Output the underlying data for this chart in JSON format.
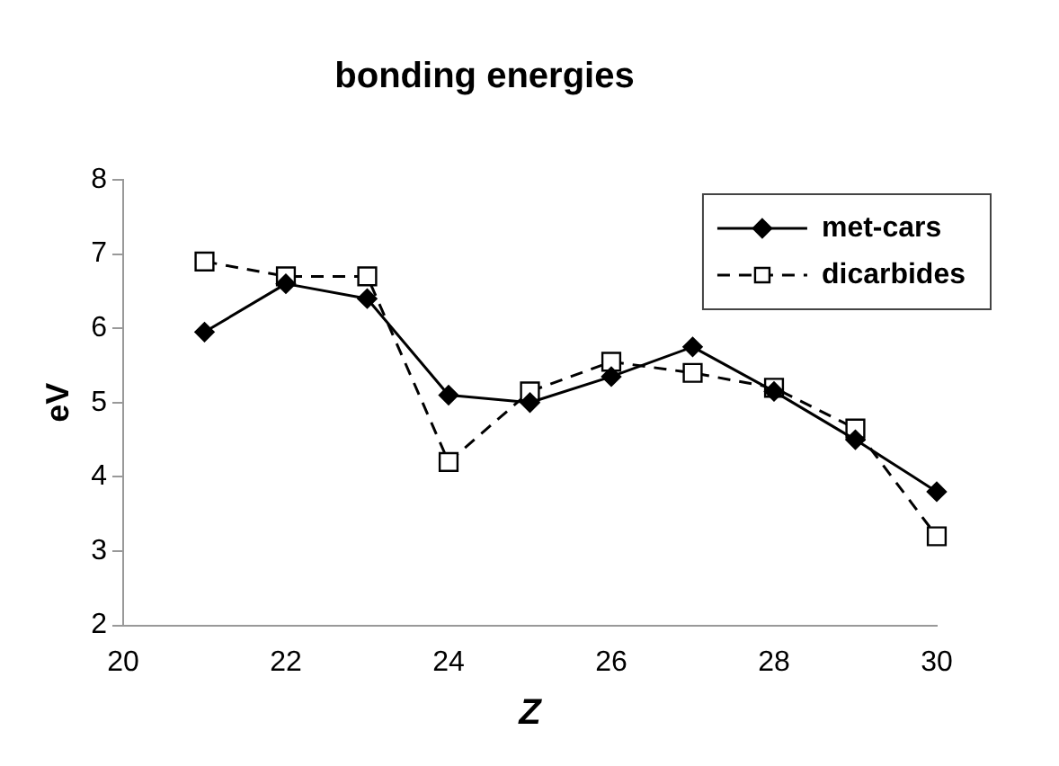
{
  "chart_data": {
    "type": "line",
    "title": "bonding energies",
    "xlabel": "Z",
    "ylabel": "eV",
    "x": [
      21,
      22,
      23,
      24,
      25,
      26,
      27,
      28,
      29,
      30
    ],
    "series": [
      {
        "name": "met-cars",
        "color": "#000000",
        "marker": "diamond",
        "line_style": "solid",
        "values": [
          5.95,
          6.6,
          6.4,
          5.1,
          5.0,
          5.35,
          5.75,
          5.15,
          4.5,
          3.8
        ]
      },
      {
        "name": "dicarbides",
        "color": "#000000",
        "marker": "square",
        "line_style": "dashed",
        "values": [
          6.9,
          6.7,
          6.7,
          4.2,
          5.15,
          5.55,
          5.4,
          5.2,
          4.65,
          3.2
        ]
      }
    ],
    "xlim": [
      20,
      30
    ],
    "xticks": [
      20,
      22,
      24,
      26,
      28,
      30
    ],
    "ylim": [
      2,
      8
    ],
    "yticks": [
      2,
      3,
      4,
      5,
      6,
      7,
      8
    ],
    "grid": false,
    "legend": "top right"
  }
}
